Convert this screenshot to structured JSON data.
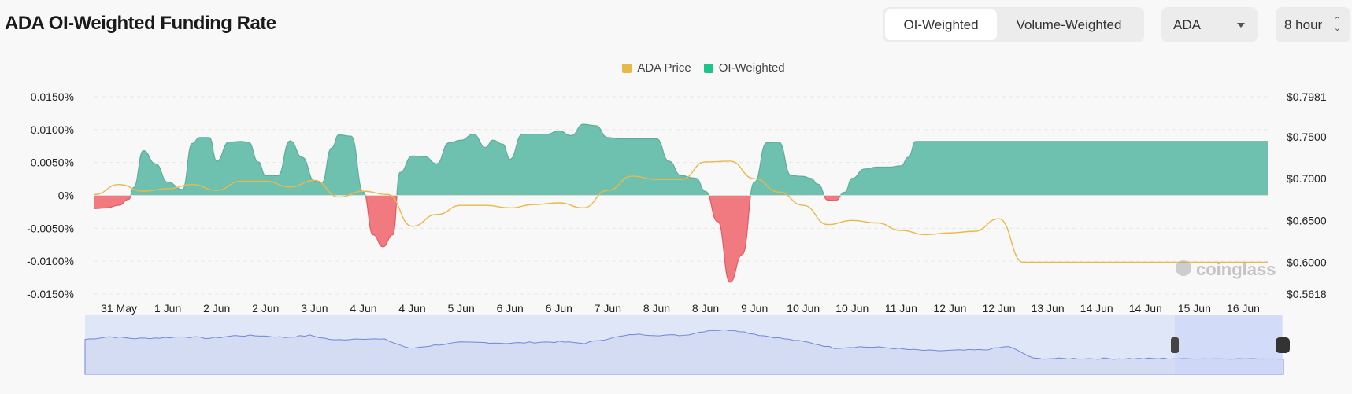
{
  "header": {
    "title": "ADA OI-Weighted Funding Rate",
    "toggle": [
      "OI-Weighted",
      "Volume-Weighted"
    ],
    "toggle_active": 0,
    "symbol": "ADA",
    "interval": "8 hour"
  },
  "colors": {
    "positive": "#6fc1af",
    "negative": "#f07a7f",
    "price": "#e9b84a",
    "navigator_line": "#6f88d8",
    "navigator_fill": "#dfe6f7",
    "navigator_selected": "#c9d4f7"
  },
  "watermark": "coinglass",
  "chart_data": {
    "type": "area",
    "legend": [
      {
        "name": "ADA Price",
        "color": "#e9b84a"
      },
      {
        "name": "OI-Weighted",
        "color": "#1fc38b"
      }
    ],
    "x_labels": [
      "31 May",
      "1 Jun",
      "2 Jun",
      "2 Jun",
      "3 Jun",
      "4 Jun",
      "4 Jun",
      "5 Jun",
      "6 Jun",
      "6 Jun",
      "7 Jun",
      "8 Jun",
      "8 Jun",
      "9 Jun",
      "10 Jun",
      "10 Jun",
      "11 Jun",
      "12 Jun",
      "12 Jun",
      "13 Jun",
      "14 Jun",
      "14 Jun",
      "15 Jun",
      "16 Jun"
    ],
    "left_axis": {
      "unit": "%",
      "ticks": [
        "0.0150%",
        "0.0100%",
        "0.0050%",
        "0%",
        "-0.0050%",
        "-0.0100%",
        "-0.0150%"
      ],
      "range": [
        -0.015,
        0.015
      ]
    },
    "right_axis": {
      "ticks": [
        "$0.7981",
        "$0.7500",
        "$0.7000",
        "$0.6500",
        "$0.6000",
        "$0.5618"
      ],
      "range": [
        0.5618,
        0.7981
      ]
    },
    "series": [
      {
        "name": "OI-Weighted",
        "axis": "left",
        "x": [
          0,
          0.5,
          1,
          1.4,
          1.6,
          2,
          2.5,
          3,
          3.6,
          4,
          4.3,
          4.7,
          5,
          5.5,
          6,
          6.3,
          6.7,
          7,
          7.5,
          8,
          8.5,
          9,
          9.3,
          9.7,
          10,
          10.5,
          11,
          11.4,
          11.8,
          12.2,
          12.5,
          13,
          13.5,
          14,
          14.5,
          15,
          15.5,
          16,
          16.3,
          16.7,
          17,
          17.5,
          18,
          18.5,
          19,
          19.5,
          20,
          20.5,
          21,
          21.5,
          22,
          22.5,
          23,
          23.5,
          24,
          24.6,
          25,
          25.5,
          26,
          26.5,
          27,
          27.5,
          28,
          28.5,
          29,
          29.3,
          29.6,
          30,
          30.3,
          30.7,
          31,
          31.5,
          32,
          32.5,
          33,
          33.3,
          33.6,
          34,
          34.5,
          35,
          35.5,
          36,
          36.5,
          37,
          37.5,
          38,
          38.5,
          39,
          39.3,
          39.6,
          40,
          40.5,
          41,
          41.5,
          42,
          42.3,
          42.7,
          43,
          43.5,
          44,
          44.3,
          44.7,
          45,
          45.5,
          46,
          46.5,
          47,
          47.5,
          48
        ],
        "values": [
          -0.002,
          -0.0019,
          -0.0015,
          -0.0006,
          0.0012,
          0.0068,
          0.0048,
          0.002,
          0.0009,
          0.0079,
          0.0088,
          0.0088,
          0.0052,
          0.0081,
          0.0082,
          0.0081,
          0.0051,
          0.003,
          0.003,
          0.0083,
          0.0058,
          0.0022,
          0.0019,
          0.0072,
          0.0092,
          0.009,
          0.0005,
          -0.006,
          -0.0078,
          -0.006,
          0.0035,
          0.006,
          0.0059,
          0.0048,
          0.008,
          0.0084,
          0.0093,
          0.0073,
          0.0084,
          0.0078,
          0.0055,
          0.0093,
          0.0093,
          0.0093,
          0.0098,
          0.0091,
          0.0108,
          0.0106,
          0.0088,
          0.0086,
          0.0086,
          0.0086,
          0.0086,
          0.0052,
          0.003,
          0.0026,
          0.0006,
          -0.004,
          -0.0132,
          -0.009,
          0.002,
          0.008,
          0.0081,
          0.003,
          0.0029,
          0.0026,
          0.0017,
          -0.0007,
          -0.0008,
          0.0005,
          0.0026,
          0.004,
          0.0043,
          0.0043,
          0.0045,
          0.0058,
          0.0082,
          0.0082,
          0.0082,
          0.0082,
          0.0082,
          0.0082,
          0.0082,
          0.0082,
          0.0082,
          0.0082,
          0.0082,
          0.0082,
          0.0082,
          0.0082,
          0.0082,
          0.0082,
          0.0082,
          0.0082,
          0.0082,
          0.0082,
          0.0082,
          0.0082,
          0.0082,
          0.0082,
          0.0082,
          0.0082,
          0.0082,
          0.0082,
          0.0082,
          0.0082,
          0.0082,
          0.0082,
          0.0082
        ]
      },
      {
        "name": "ADA Price",
        "axis": "right",
        "x": [
          0,
          1,
          2,
          3,
          4,
          5,
          6,
          7,
          8,
          9,
          10,
          11,
          12,
          13,
          14,
          15,
          16,
          17,
          18,
          19,
          20,
          21,
          22,
          23,
          24,
          25,
          26,
          27,
          28,
          29,
          30,
          31,
          32,
          33,
          34,
          35,
          36,
          37,
          38,
          39,
          40,
          41,
          42,
          43,
          44,
          45,
          46,
          47,
          48
        ],
        "values": [
          0.681,
          0.693,
          0.685,
          0.688,
          0.693,
          0.686,
          0.697,
          0.697,
          0.69,
          0.698,
          0.678,
          0.685,
          0.681,
          0.643,
          0.657,
          0.668,
          0.668,
          0.665,
          0.669,
          0.671,
          0.665,
          0.686,
          0.703,
          0.699,
          0.699,
          0.72,
          0.721,
          0.7,
          0.684,
          0.668,
          0.645,
          0.65,
          0.647,
          0.638,
          0.633,
          0.635,
          0.637,
          0.652,
          0.6,
          0.6,
          0.6,
          0.6,
          0.6,
          0.6,
          0.6,
          0.6,
          0.6,
          0.6,
          0.6
        ]
      }
    ]
  }
}
